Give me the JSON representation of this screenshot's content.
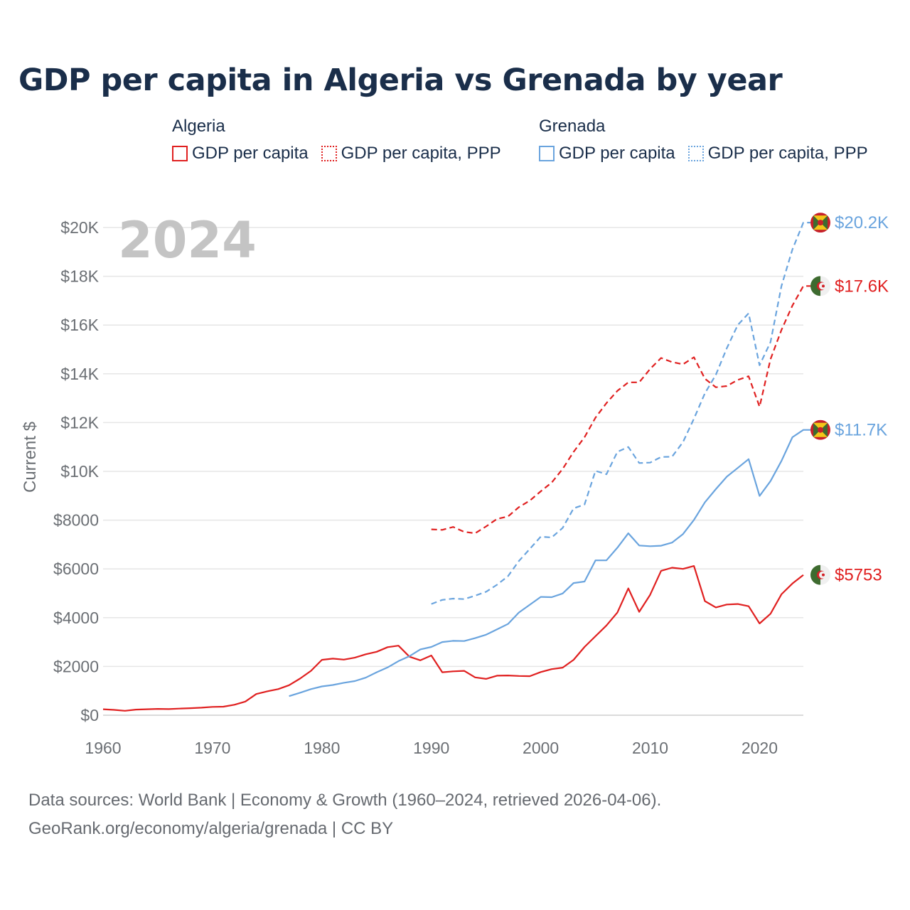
{
  "title": "GDP per capita in Algeria vs Grenada by year",
  "legend": {
    "algeria": {
      "country": "Algeria",
      "gdp_label": "GDP per capita",
      "ppp_label": "GDP per capita, PPP",
      "color": "#e02020"
    },
    "grenada": {
      "country": "Grenada",
      "gdp_label": "GDP per capita",
      "ppp_label": "GDP per capita, PPP",
      "color": "#6aa4de"
    }
  },
  "year_label": "2024",
  "footer": {
    "line1": "Data sources: World Bank | Economy & Growth (1960–2024, retrieved 2026-04-06).",
    "line2": "GeoRank.org/economy/algeria/grenada | CC BY"
  },
  "chart_data": {
    "type": "line",
    "title": "GDP per capita in Algeria vs Grenada by year",
    "xlabel": "",
    "ylabel": "Current $",
    "xlim": [
      1960,
      2024
    ],
    "ylim": [
      0,
      20000
    ],
    "x_ticks": [
      1960,
      1970,
      1980,
      1990,
      2000,
      2010,
      2020
    ],
    "x_tick_labels": [
      "1960",
      "1970",
      "1980",
      "1990",
      "2000",
      "2010",
      "2020"
    ],
    "y_ticks": [
      0,
      2000,
      4000,
      6000,
      8000,
      10000,
      12000,
      14000,
      16000,
      18000,
      20000
    ],
    "y_tick_labels": [
      "$0",
      "$2000",
      "$4000",
      "$6000",
      "$8000",
      "$10K",
      "$12K",
      "$14K",
      "$16K",
      "$18K",
      "$20K"
    ],
    "grid": true,
    "series": [
      {
        "name": "Algeria GDP per capita",
        "color": "#e02020",
        "dash": "solid",
        "end_label": "$5753",
        "start_year": 1960,
        "values": [
          245,
          220,
          180,
          230,
          245,
          260,
          250,
          270,
          290,
          310,
          340,
          350,
          430,
          560,
          870,
          980,
          1070,
          1230,
          1500,
          1820,
          2270,
          2320,
          2280,
          2360,
          2500,
          2600,
          2790,
          2850,
          2400,
          2250,
          2450,
          1760,
          1800,
          1820,
          1550,
          1490,
          1620,
          1630,
          1610,
          1600,
          1770,
          1890,
          1950,
          2270,
          2800,
          3240,
          3680,
          4210,
          5200,
          4240,
          4940,
          5920,
          6050,
          6000,
          6120,
          4680,
          4420,
          4540,
          4560,
          4470,
          3760,
          4160,
          4960,
          5400,
          5753
        ]
      },
      {
        "name": "Algeria GDP per capita, PPP",
        "color": "#e02020",
        "dash": "dashed",
        "end_label": "$17.6K",
        "start_year": 1990,
        "values": [
          7620,
          7600,
          7720,
          7520,
          7460,
          7740,
          8050,
          8150,
          8530,
          8800,
          9180,
          9540,
          10100,
          10800,
          11400,
          12200,
          12800,
          13300,
          13650,
          13650,
          14200,
          14650,
          14480,
          14390,
          14680,
          13800,
          13450,
          13500,
          13750,
          13900,
          12650,
          14600,
          15800,
          16800,
          17600,
          17600
        ]
      },
      {
        "name": "Grenada GDP per capita",
        "color": "#6aa4de",
        "dash": "solid",
        "end_label": "$11.7K",
        "start_year": 1977,
        "values": [
          780,
          920,
          1070,
          1180,
          1240,
          1330,
          1400,
          1540,
          1760,
          1960,
          2220,
          2420,
          2700,
          2800,
          3000,
          3050,
          3040,
          3160,
          3300,
          3520,
          3740,
          4210,
          4530,
          4850,
          4840,
          4990,
          5420,
          5480,
          6350,
          6350,
          6870,
          7460,
          6960,
          6930,
          6950,
          7080,
          7430,
          8010,
          8730,
          9270,
          9780,
          10140,
          10500,
          8990,
          9600,
          10430,
          11400,
          11700,
          11700
        ]
      },
      {
        "name": "Grenada GDP per capita, PPP",
        "color": "#6aa4de",
        "dash": "dashed",
        "end_label": "$20.2K",
        "start_year": 1990,
        "values": [
          4560,
          4730,
          4780,
          4760,
          4900,
          5060,
          5350,
          5700,
          6320,
          6820,
          7320,
          7290,
          7680,
          8480,
          8640,
          10020,
          9880,
          10800,
          11000,
          10340,
          10360,
          10590,
          10600,
          11200,
          12160,
          13200,
          13960,
          15050,
          16000,
          16480,
          14350,
          15300,
          17600,
          19100,
          20200,
          20200
        ]
      }
    ]
  }
}
